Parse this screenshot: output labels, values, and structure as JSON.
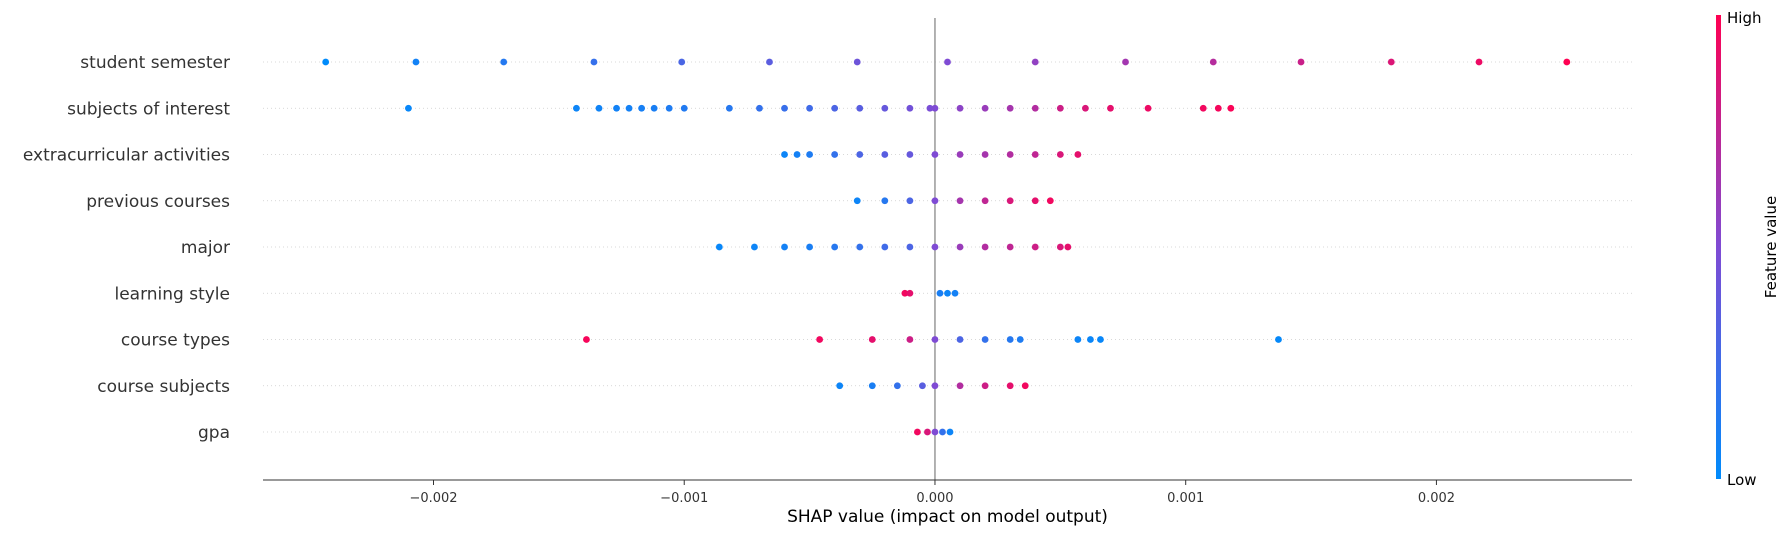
{
  "chart_data": {
    "type": "scatter",
    "subtype": "shap-beeswarm",
    "xlabel": "SHAP value (impact on model output)",
    "xlim": [
      -0.00268,
      0.00278
    ],
    "xticks": [
      -0.002,
      -0.001,
      0.0,
      0.001,
      0.002
    ],
    "xtick_labels": [
      "−0.002",
      "−0.001",
      "0.000",
      "0.001",
      "0.002"
    ],
    "zero_line": true,
    "colorbar": {
      "label": "Feature value",
      "high_label": "High",
      "low_label": "Low",
      "low_color": "#008bfb",
      "high_color": "#ff0052"
    },
    "features": [
      {
        "name": "student semester",
        "points": [
          [
            -0.00243,
            0.0
          ],
          [
            -0.00207,
            0.07
          ],
          [
            -0.00172,
            0.14
          ],
          [
            -0.00136,
            0.21
          ],
          [
            -0.00101,
            0.29
          ],
          [
            -0.00066,
            0.36
          ],
          [
            -0.00031,
            0.43
          ],
          [
            5e-05,
            0.5
          ],
          [
            0.0004,
            0.57
          ],
          [
            0.00076,
            0.64
          ],
          [
            0.00111,
            0.71
          ],
          [
            0.00146,
            0.79
          ],
          [
            0.00182,
            0.86
          ],
          [
            0.00217,
            0.93
          ],
          [
            0.00252,
            1.0
          ]
        ]
      },
      {
        "name": "subjects of interest",
        "points": [
          [
            -0.0021,
            0.03
          ],
          [
            -0.00143,
            0.05
          ],
          [
            -0.00134,
            0.06
          ],
          [
            -0.00127,
            0.07
          ],
          [
            -0.00122,
            0.08
          ],
          [
            -0.00117,
            0.09
          ],
          [
            -0.00112,
            0.1
          ],
          [
            -0.00106,
            0.12
          ],
          [
            -0.001,
            0.13
          ],
          [
            -0.00082,
            0.15
          ],
          [
            -0.0007,
            0.2
          ],
          [
            -0.0006,
            0.22
          ],
          [
            -0.0005,
            0.25
          ],
          [
            -0.0004,
            0.3
          ],
          [
            -0.0003,
            0.35
          ],
          [
            -0.0002,
            0.4
          ],
          [
            -0.0001,
            0.45
          ],
          [
            -2e-05,
            0.48
          ],
          [
            0.0,
            0.5
          ],
          [
            0.0001,
            0.55
          ],
          [
            0.0002,
            0.6
          ],
          [
            0.0003,
            0.65
          ],
          [
            0.0004,
            0.7
          ],
          [
            0.0005,
            0.8
          ],
          [
            0.0006,
            0.85
          ],
          [
            0.0007,
            0.9
          ],
          [
            0.00085,
            0.93
          ],
          [
            0.00107,
            0.95
          ],
          [
            0.00113,
            0.96
          ],
          [
            0.00118,
            0.98
          ]
        ]
      },
      {
        "name": "extracurricular activities",
        "points": [
          [
            -0.0006,
            0.05
          ],
          [
            -0.00055,
            0.08
          ],
          [
            -0.0005,
            0.12
          ],
          [
            -0.0004,
            0.2
          ],
          [
            -0.0003,
            0.3
          ],
          [
            -0.0002,
            0.35
          ],
          [
            -0.0001,
            0.4
          ],
          [
            0.0,
            0.5
          ],
          [
            0.0001,
            0.6
          ],
          [
            0.0002,
            0.65
          ],
          [
            0.0003,
            0.7
          ],
          [
            0.0004,
            0.75
          ],
          [
            0.0005,
            0.85
          ],
          [
            0.00057,
            0.9
          ]
        ]
      },
      {
        "name": "previous courses",
        "points": [
          [
            -0.00031,
            0.05
          ],
          [
            -0.0002,
            0.15
          ],
          [
            -0.0001,
            0.3
          ],
          [
            0.0,
            0.5
          ],
          [
            0.0001,
            0.65
          ],
          [
            0.0002,
            0.75
          ],
          [
            0.0003,
            0.85
          ],
          [
            0.0004,
            0.9
          ],
          [
            0.00046,
            0.95
          ]
        ]
      },
      {
        "name": "major",
        "points": [
          [
            -0.00086,
            0.03
          ],
          [
            -0.00072,
            0.05
          ],
          [
            -0.0006,
            0.08
          ],
          [
            -0.0005,
            0.1
          ],
          [
            -0.0004,
            0.15
          ],
          [
            -0.0003,
            0.2
          ],
          [
            -0.0002,
            0.25
          ],
          [
            -0.0001,
            0.3
          ],
          [
            0.0,
            0.5
          ],
          [
            0.0001,
            0.6
          ],
          [
            0.0002,
            0.7
          ],
          [
            0.0003,
            0.75
          ],
          [
            0.0004,
            0.8
          ],
          [
            0.0005,
            0.85
          ],
          [
            0.00053,
            0.9
          ]
        ]
      },
      {
        "name": "learning style",
        "points": [
          [
            -0.00012,
            0.95
          ],
          [
            -0.0001,
            0.9
          ],
          [
            2e-05,
            0.1
          ],
          [
            5e-05,
            0.05
          ],
          [
            8e-05,
            0.08
          ]
        ]
      },
      {
        "name": "course types",
        "points": [
          [
            -0.00139,
            0.97
          ],
          [
            -0.00046,
            0.95
          ],
          [
            -0.00025,
            0.9
          ],
          [
            -0.0001,
            0.8
          ],
          [
            0.0,
            0.5
          ],
          [
            0.0001,
            0.3
          ],
          [
            0.0002,
            0.2
          ],
          [
            0.0003,
            0.15
          ],
          [
            0.00034,
            0.12
          ],
          [
            0.00057,
            0.05
          ],
          [
            0.00062,
            0.04
          ],
          [
            0.00066,
            0.03
          ],
          [
            0.00137,
            0.02
          ]
        ]
      },
      {
        "name": "course subjects",
        "points": [
          [
            -0.00038,
            0.05
          ],
          [
            -0.00025,
            0.1
          ],
          [
            -0.00015,
            0.2
          ],
          [
            -5e-05,
            0.35
          ],
          [
            0.0,
            0.5
          ],
          [
            0.0001,
            0.7
          ],
          [
            0.0002,
            0.8
          ],
          [
            0.0003,
            0.9
          ],
          [
            0.00036,
            0.95
          ]
        ]
      },
      {
        "name": "gpa",
        "points": [
          [
            -7e-05,
            0.95
          ],
          [
            -3e-05,
            0.85
          ],
          [
            0.0,
            0.5
          ],
          [
            3e-05,
            0.2
          ],
          [
            6e-05,
            0.05
          ]
        ]
      }
    ]
  }
}
